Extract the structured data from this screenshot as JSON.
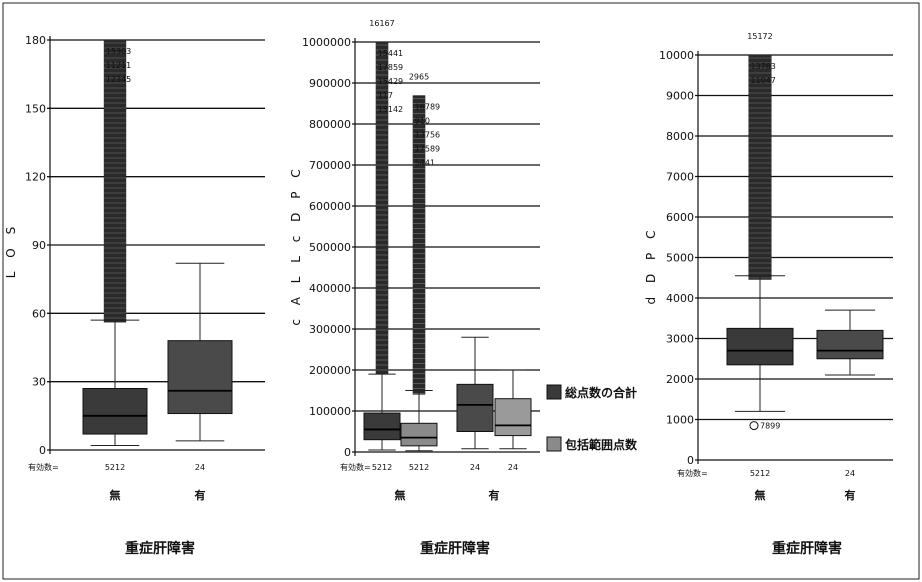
{
  "chart_data": [
    {
      "type": "box",
      "ylabel": "L O S",
      "title": "重症肝障害",
      "yticks": [
        0,
        30,
        60,
        90,
        120,
        150,
        180
      ],
      "ylim": [
        0,
        180
      ],
      "n_label": "有効数=",
      "groups": [
        {
          "category": "無",
          "n": "5212",
          "fill": "#3a3a3a",
          "min": 2,
          "q1": 7,
          "median": 15,
          "q3": 27,
          "max": 57,
          "outlier_band": [
            56,
            180
          ],
          "outlier_labels": [
            "15303",
            "11211",
            "12345"
          ]
        },
        {
          "category": "有",
          "n": "24",
          "fill": "#4a4a4a",
          "min": 4,
          "q1": 16,
          "median": 26,
          "q3": 48,
          "max": 82
        }
      ]
    },
    {
      "type": "box",
      "ylabel": "c A L L c D P C",
      "title": "重症肝障害",
      "yticks": [
        0,
        100000,
        200000,
        300000,
        400000,
        500000,
        600000,
        700000,
        800000,
        900000,
        1000000
      ],
      "ylim": [
        0,
        1000000
      ],
      "n_label": "有効数=",
      "series": [
        {
          "name": "総点数の合計",
          "fill": "#3a3a3a"
        },
        {
          "name": "包括範囲点数",
          "fill": "#8a8a8a"
        }
      ],
      "groups": [
        {
          "category": "無",
          "series": "総点数の合計",
          "n": "5212",
          "fill": "#3a3a3a",
          "min": 5000,
          "q1": 30000,
          "median": 55000,
          "q3": 95000,
          "max": 190000,
          "outlier_band": [
            190000,
            1000000
          ],
          "top_label": "16167",
          "outlier_labels": [
            "15441",
            "17859",
            "15429",
            "117",
            "15142"
          ]
        },
        {
          "category": "無",
          "series": "包括範囲点数",
          "n": "5212",
          "fill": "#8a8a8a",
          "min": 3000,
          "q1": 15000,
          "median": 35000,
          "q3": 70000,
          "max": 150000,
          "outlier_band": [
            140000,
            870000
          ],
          "top_label": "2965",
          "outlier_labels": [
            "16789",
            "910",
            "13756",
            "17589",
            "5441"
          ]
        },
        {
          "category": "有",
          "series": "総点数の合計",
          "n": "24",
          "fill": "#4a4a4a",
          "min": 8000,
          "q1": 50000,
          "median": 115000,
          "q3": 165000,
          "max": 280000
        },
        {
          "category": "有",
          "series": "包括範囲点数",
          "n": "24",
          "fill": "#9a9a9a",
          "min": 8000,
          "q1": 40000,
          "median": 65000,
          "q3": 130000,
          "max": 200000
        }
      ]
    },
    {
      "type": "box",
      "ylabel": "d D P C",
      "title": "重症肝障害",
      "yticks": [
        0,
        1000,
        2000,
        3000,
        4000,
        5000,
        6000,
        7000,
        8000,
        9000,
        10000
      ],
      "ylim": [
        0,
        10000
      ],
      "n_label": "有効数=",
      "groups": [
        {
          "category": "無",
          "n": "5212",
          "fill": "#3a3a3a",
          "min": 1200,
          "q1": 2350,
          "median": 2700,
          "q3": 3250,
          "max": 4550,
          "outlier_band": [
            4450,
            10000
          ],
          "top_label": "15172",
          "outlier_labels": [
            "13783",
            "11047"
          ],
          "low_outlier": {
            "value": 850,
            "label": "7899"
          }
        },
        {
          "category": "有",
          "n": "24",
          "fill": "#4a4a4a",
          "min": 2100,
          "q1": 2500,
          "median": 2700,
          "q3": 3200,
          "max": 3700
        }
      ]
    }
  ]
}
